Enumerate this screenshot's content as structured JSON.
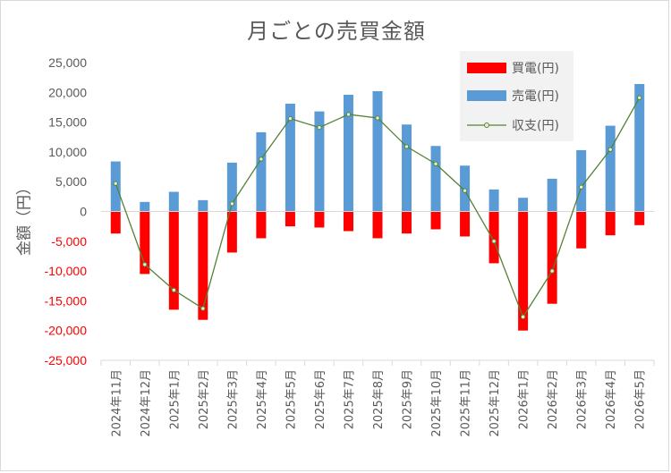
{
  "chart_data": {
    "type": "bar",
    "title": "月ごとの売買金額",
    "ylabel": "金額（円）",
    "xlabel": "",
    "ylim": [
      -25000,
      25000
    ],
    "yticks": [
      25000,
      20000,
      15000,
      10000,
      5000,
      0,
      -5000,
      -10000,
      -15000,
      -20000,
      -25000
    ],
    "ytick_labels": [
      "25,000",
      "20,000",
      "15,000",
      "10,000",
      "5,000",
      "0",
      "-5,000",
      "-10,000",
      "-15,000",
      "-20,000",
      "-25,000"
    ],
    "categories": [
      "2024年11月",
      "2024年12月",
      "2025年1月",
      "2025年2月",
      "2025年3月",
      "2025年4月",
      "2025年5月",
      "2025年6月",
      "2025年7月",
      "2025年8月",
      "2025年9月",
      "2025年10月",
      "2025年11月",
      "2025年12月",
      "2026年1月",
      "2026年2月",
      "2026年3月",
      "2026年4月",
      "2026年5月"
    ],
    "series": [
      {
        "name": "買電(円)",
        "kind": "bar",
        "color": "#ff0000",
        "values": [
          -3700,
          -10500,
          -16500,
          -18200,
          -6900,
          -4500,
          -2500,
          -2700,
          -3300,
          -4500,
          -3700,
          -3000,
          -4200,
          -8700,
          -20000,
          -15500,
          -6200,
          -4000,
          -2300
        ]
      },
      {
        "name": "売電(円)",
        "kind": "bar",
        "color": "#5b9bd5",
        "values": [
          8400,
          1600,
          3300,
          1900,
          8200,
          13300,
          18100,
          16800,
          19600,
          20200,
          14600,
          11000,
          7700,
          3700,
          2300,
          5500,
          10300,
          14400,
          21400
        ]
      },
      {
        "name": "収支(円)",
        "kind": "line",
        "color": "#548235",
        "values": [
          4700,
          -8900,
          -13200,
          -16300,
          1300,
          8800,
          15600,
          14100,
          16300,
          15700,
          10900,
          8000,
          3500,
          -5000,
          -17700,
          -10000,
          4100,
          10400,
          19100
        ]
      }
    ],
    "legend": "top-right",
    "grid": false,
    "colors": {
      "positive_tick": "#595959",
      "negative_tick": "#ff0000",
      "axis": "#d9d9d9"
    }
  }
}
